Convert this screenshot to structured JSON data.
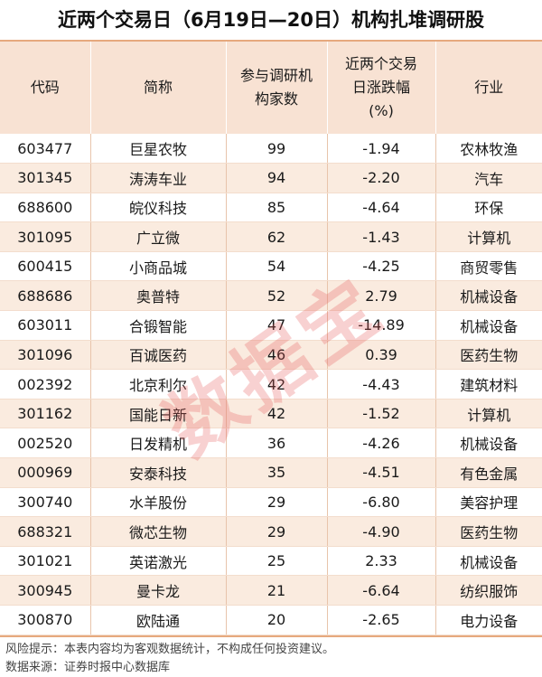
{
  "title": "近两个交易日（6月19日—20日）机构扎堆调研股",
  "headers": {
    "code": "代码",
    "name": "简称",
    "count_line1": "参与调研机",
    "count_line2": "构家数",
    "change_line1": "近两个交易",
    "change_line2": "日涨跌幅",
    "change_line3": "(%)",
    "industry": "行业"
  },
  "rows": [
    {
      "code": "603477",
      "name": "巨星农牧",
      "count": "99",
      "change": "-1.94",
      "industry": "农林牧渔"
    },
    {
      "code": "301345",
      "name": "涛涛车业",
      "count": "94",
      "change": "-2.20",
      "industry": "汽车"
    },
    {
      "code": "688600",
      "name": "皖仪科技",
      "count": "85",
      "change": "-4.64",
      "industry": "环保"
    },
    {
      "code": "301095",
      "name": "广立微",
      "count": "62",
      "change": "-1.43",
      "industry": "计算机"
    },
    {
      "code": "600415",
      "name": "小商品城",
      "count": "54",
      "change": "-4.25",
      "industry": "商贸零售"
    },
    {
      "code": "688686",
      "name": "奥普特",
      "count": "52",
      "change": "2.79",
      "industry": "机械设备"
    },
    {
      "code": "603011",
      "name": "合锻智能",
      "count": "47",
      "change": "-14.89",
      "industry": "机械设备"
    },
    {
      "code": "301096",
      "name": "百诚医药",
      "count": "46",
      "change": "0.39",
      "industry": "医药生物"
    },
    {
      "code": "002392",
      "name": "北京利尔",
      "count": "42",
      "change": "-4.43",
      "industry": "建筑材料"
    },
    {
      "code": "301162",
      "name": "国能日新",
      "count": "42",
      "change": "-1.52",
      "industry": "计算机"
    },
    {
      "code": "002520",
      "name": "日发精机",
      "count": "36",
      "change": "-4.26",
      "industry": "机械设备"
    },
    {
      "code": "000969",
      "name": "安泰科技",
      "count": "35",
      "change": "-4.51",
      "industry": "有色金属"
    },
    {
      "code": "300740",
      "name": "水羊股份",
      "count": "29",
      "change": "-6.80",
      "industry": "美容护理"
    },
    {
      "code": "688321",
      "name": "微芯生物",
      "count": "29",
      "change": "-4.90",
      "industry": "医药生物"
    },
    {
      "code": "301021",
      "name": "英诺激光",
      "count": "25",
      "change": "2.33",
      "industry": "机械设备"
    },
    {
      "code": "300945",
      "name": "曼卡龙",
      "count": "21",
      "change": "-6.64",
      "industry": "纺织服饰"
    },
    {
      "code": "300870",
      "name": "欧陆通",
      "count": "20",
      "change": "-2.65",
      "industry": "电力设备"
    }
  ],
  "footer": {
    "risk": "风险提示：本表内容均为客观数据统计，不构成任何投资建议。",
    "source": "数据来源：证券时报中心数据库"
  },
  "watermark": "数据宝",
  "colors": {
    "header_bg": "#f8e2d3",
    "stripe_bg": "#faebdf",
    "rule": "#e6a97e",
    "watermark": "#e65a5a"
  }
}
